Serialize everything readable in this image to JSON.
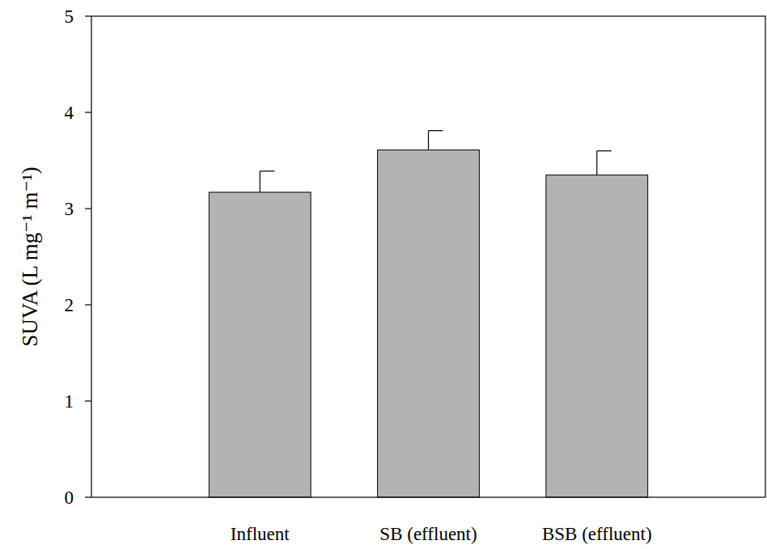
{
  "chart_data": {
    "type": "bar",
    "y_label": "SUVA (L mg⁻¹ m⁻¹)",
    "categories": [
      "Influent",
      "SB (effluent)",
      "BSB (effluent)"
    ],
    "values": [
      3.17,
      3.61,
      3.35
    ],
    "errors": [
      0.22,
      0.2,
      0.25
    ],
    "color": "#b3b3b3",
    "ylim": [
      0,
      5
    ],
    "yticks": [
      0,
      1,
      2,
      3,
      4,
      5
    ],
    "grid": false
  }
}
